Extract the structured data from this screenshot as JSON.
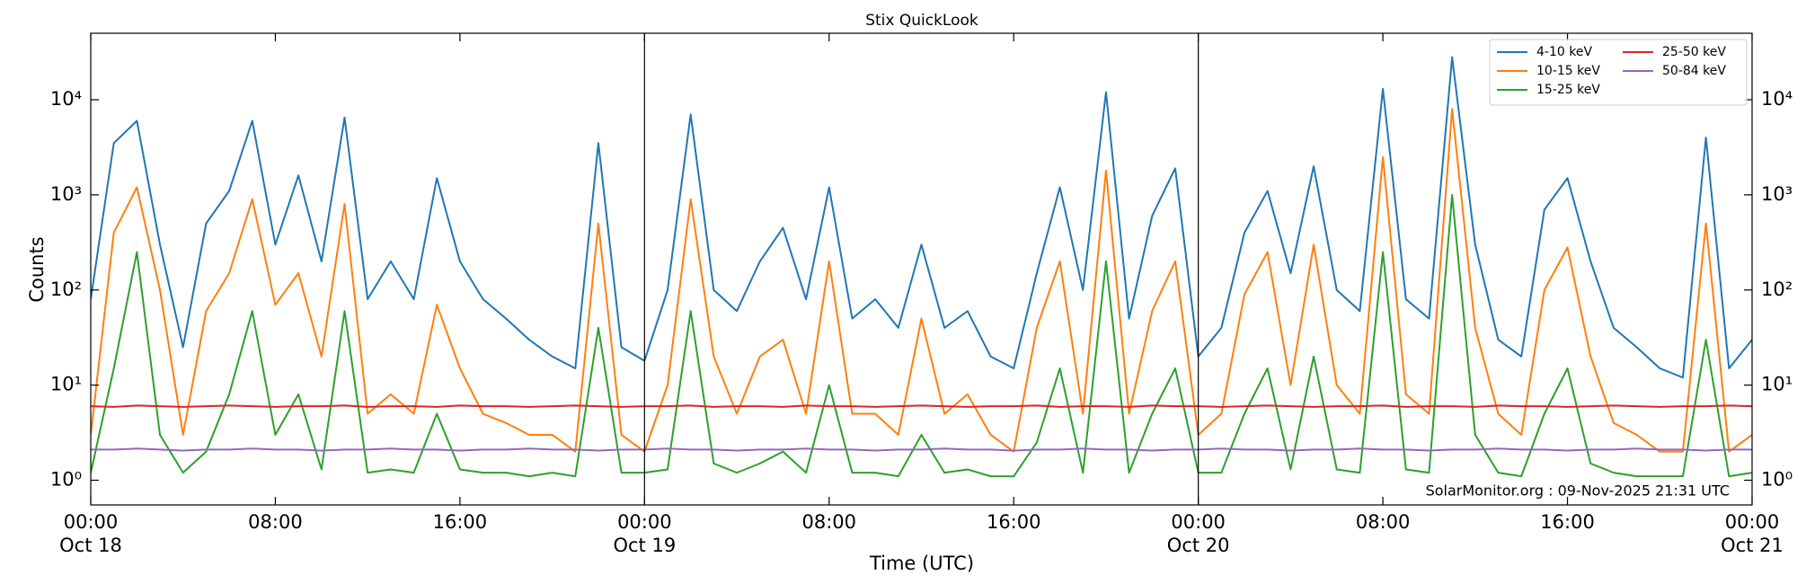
{
  "chart_data": {
    "type": "line",
    "title": "Stix QuickLook",
    "xlabel": "Time (UTC)",
    "ylabel": "Counts",
    "annotation": "SolarMonitor.org : 09-Nov-2025 21:31 UTC",
    "log_y": true,
    "right_axis_labels": true,
    "legend_loc": "upper right",
    "legend_ncol": 2,
    "vlines": [
      24,
      48
    ],
    "xlim": [
      0,
      72
    ],
    "xticks": [
      {
        "value": 0,
        "label": "00:00\nOct 18"
      },
      {
        "value": 8,
        "label": "08:00"
      },
      {
        "value": 16,
        "label": "16:00"
      },
      {
        "value": 24,
        "label": "00:00\nOct 19"
      },
      {
        "value": 32,
        "label": "08:00"
      },
      {
        "value": 40,
        "label": "16:00"
      },
      {
        "value": 48,
        "label": "00:00\nOct 20"
      },
      {
        "value": 56,
        "label": "08:00"
      },
      {
        "value": 64,
        "label": "16:00"
      },
      {
        "value": 72,
        "label": "00:00\nOct 21"
      }
    ],
    "ylim": [
      0.55,
      50000
    ],
    "yticks": [
      {
        "value": 1,
        "label": "10⁰"
      },
      {
        "value": 10,
        "label": "10¹"
      },
      {
        "value": 100,
        "label": "10²"
      },
      {
        "value": 1000,
        "label": "10³"
      },
      {
        "value": 10000,
        "label": "10⁴"
      }
    ],
    "x": [
      0,
      1,
      2,
      3,
      4,
      5,
      6,
      7,
      8,
      9,
      10,
      11,
      12,
      13,
      14,
      15,
      16,
      17,
      18,
      19,
      20,
      21,
      22,
      23,
      24,
      25,
      26,
      27,
      28,
      29,
      30,
      31,
      32,
      33,
      34,
      35,
      36,
      37,
      38,
      39,
      40,
      41,
      42,
      43,
      44,
      45,
      46,
      47,
      48,
      49,
      50,
      51,
      52,
      53,
      54,
      55,
      56,
      57,
      58,
      59,
      60,
      61,
      62,
      63,
      64,
      65,
      66,
      67,
      68,
      69,
      70,
      71,
      72
    ],
    "series": [
      {
        "name": "4-10 keV",
        "color": "#1f77b4",
        "values": [
          80,
          3500,
          6000,
          300,
          25,
          500,
          1100,
          6000,
          300,
          1600,
          200,
          6500,
          80,
          200,
          80,
          1500,
          200,
          80,
          50,
          30,
          20,
          15,
          3500,
          25,
          18,
          100,
          7000,
          100,
          60,
          200,
          450,
          80,
          1200,
          50,
          80,
          40,
          300,
          40,
          60,
          20,
          15,
          150,
          1200,
          100,
          12000,
          50,
          600,
          1900,
          20,
          40,
          400,
          1100,
          150,
          2000,
          100,
          60,
          13000,
          80,
          50,
          28000,
          300,
          30,
          20,
          700,
          1500,
          200,
          40,
          25,
          15,
          12,
          4000,
          15,
          30
        ]
      },
      {
        "name": "10-15 keV",
        "color": "#ff7f0e",
        "values": [
          3,
          400,
          1200,
          100,
          3,
          60,
          150,
          900,
          70,
          150,
          20,
          800,
          5,
          8,
          5,
          70,
          15,
          5,
          4,
          3,
          3,
          2,
          500,
          3,
          2,
          10,
          900,
          20,
          5,
          20,
          30,
          5,
          200,
          5,
          5,
          3,
          50,
          5,
          8,
          3,
          2,
          40,
          200,
          5,
          1800,
          5,
          60,
          200,
          3,
          5,
          90,
          250,
          10,
          300,
          10,
          5,
          2500,
          8,
          5,
          8000,
          40,
          5,
          3,
          100,
          280,
          20,
          4,
          3,
          2,
          2,
          500,
          2,
          3
        ]
      },
      {
        "name": "15-25 keV",
        "color": "#2ca02c",
        "values": [
          1.2,
          15,
          250,
          3,
          1.2,
          2,
          8,
          60,
          3,
          8,
          1.3,
          60,
          1.2,
          1.3,
          1.2,
          5,
          1.3,
          1.2,
          1.2,
          1.1,
          1.2,
          1.1,
          40,
          1.2,
          1.2,
          1.3,
          60,
          1.5,
          1.2,
          1.5,
          2,
          1.2,
          10,
          1.2,
          1.2,
          1.1,
          3,
          1.2,
          1.3,
          1.1,
          1.1,
          2.5,
          15,
          1.2,
          200,
          1.2,
          5,
          15,
          1.2,
          1.2,
          5,
          15,
          1.3,
          20,
          1.3,
          1.2,
          250,
          1.3,
          1.2,
          1000,
          3,
          1.2,
          1.1,
          5,
          15,
          1.5,
          1.2,
          1.1,
          1.1,
          1.1,
          30,
          1.1,
          1.2
        ]
      },
      {
        "name": "25-50 keV",
        "color": "#d62728",
        "values": [
          6,
          5.9,
          6.1,
          6,
          5.9,
          6,
          6.1,
          6,
          5.9,
          6,
          6,
          6.1,
          5.9,
          6,
          6,
          5.9,
          6.1,
          6,
          6,
          5.9,
          6,
          6.1,
          6,
          5.9,
          6,
          6,
          6.1,
          5.9,
          6,
          6,
          5.9,
          6.1,
          6,
          6,
          5.9,
          6,
          6.1,
          6,
          5.9,
          6,
          6,
          6.1,
          5.9,
          6,
          6,
          5.9,
          6.1,
          6,
          6,
          5.9,
          6,
          6.1,
          6,
          5.9,
          6,
          6,
          6.1,
          5.9,
          6,
          6,
          5.9,
          6.1,
          6,
          6,
          5.9,
          6,
          6.1,
          6,
          5.9,
          6,
          6,
          6.1,
          6
        ]
      },
      {
        "name": "50-84 keV",
        "color": "#9467bd",
        "values": [
          2.1,
          2.1,
          2.15,
          2.1,
          2.05,
          2.1,
          2.1,
          2.15,
          2.1,
          2.1,
          2.05,
          2.1,
          2.1,
          2.15,
          2.1,
          2.1,
          2.05,
          2.1,
          2.1,
          2.15,
          2.1,
          2.1,
          2.05,
          2.1,
          2.1,
          2.15,
          2.1,
          2.1,
          2.05,
          2.1,
          2.1,
          2.15,
          2.1,
          2.1,
          2.05,
          2.1,
          2.1,
          2.15,
          2.1,
          2.1,
          2.05,
          2.1,
          2.1,
          2.15,
          2.1,
          2.1,
          2.05,
          2.1,
          2.1,
          2.15,
          2.1,
          2.1,
          2.05,
          2.1,
          2.1,
          2.15,
          2.1,
          2.1,
          2.05,
          2.1,
          2.1,
          2.15,
          2.1,
          2.1,
          2.05,
          2.1,
          2.1,
          2.15,
          2.1,
          2.1,
          2.05,
          2.1,
          2.1
        ]
      }
    ]
  }
}
